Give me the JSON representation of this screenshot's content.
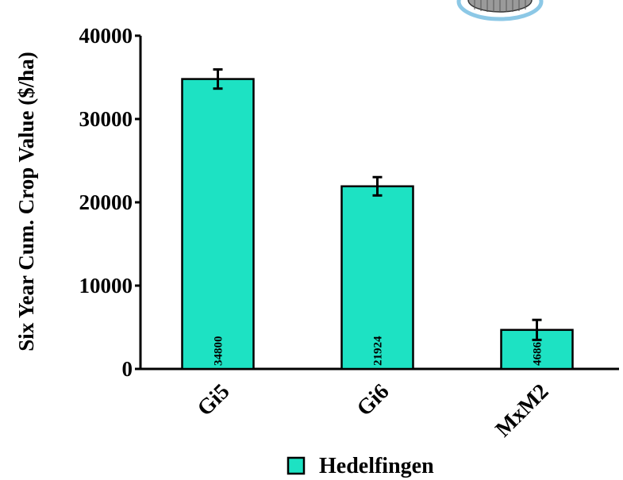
{
  "chart_data": {
    "type": "bar",
    "categories": [
      "Gi5",
      "Gi6",
      "MxM2"
    ],
    "series": [
      {
        "name": "Hedelfingen",
        "values": [
          34800,
          21924,
          4686
        ],
        "error": [
          1150,
          1100,
          1200
        ],
        "data_labels": [
          "34800",
          "21924",
          "4686"
        ]
      }
    ],
    "title": "",
    "xlabel": "",
    "ylabel": "Six Year Cum. Crop Value ($/ha)",
    "ylim": [
      0,
      40000
    ],
    "yticks": [
      0,
      10000,
      20000,
      30000,
      40000
    ],
    "ytick_labels": [
      "0",
      "10000",
      "20000",
      "30000",
      "40000"
    ],
    "grid": false,
    "legend_position": "bottom-center",
    "colors": {
      "bar": "#1de2c3",
      "stroke": "#000000",
      "logo": "#8cc8e6"
    }
  }
}
